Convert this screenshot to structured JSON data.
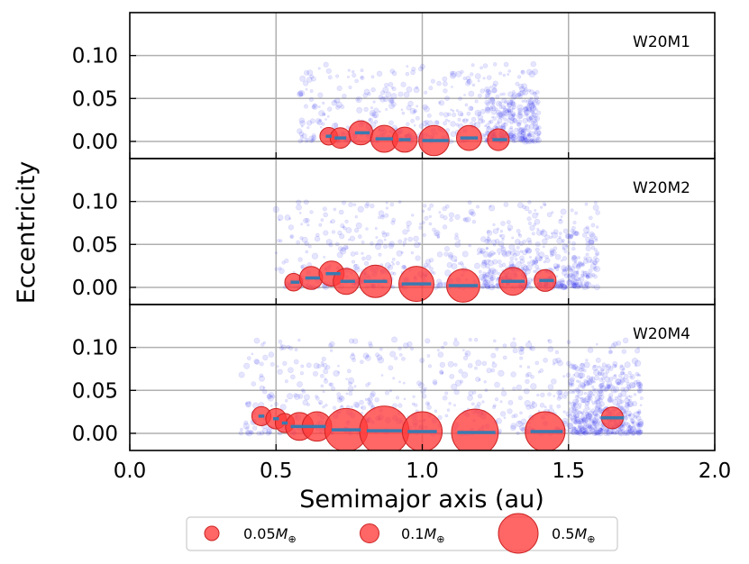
{
  "chart_data": {
    "type": "scatter",
    "xlabel": "Semimajor axis (au)",
    "ylabel": "Eccentricity",
    "xlim": [
      0.0,
      2.0
    ],
    "ylim": [
      -0.02,
      0.15
    ],
    "x_ticks": [
      "0.0",
      "0.5",
      "1.0",
      "1.5",
      "2.0"
    ],
    "y_ticks": [
      "0.00",
      "0.05",
      "0.10"
    ],
    "grid": true,
    "legend_position": "below plot",
    "legend": [
      {
        "label_base": "0.05",
        "mass_value": 0.05
      },
      {
        "label_base": "0.1",
        "mass_value": 0.1
      },
      {
        "label_base": "0.5",
        "mass_value": 0.5
      }
    ],
    "legend_unit_symbol": "M",
    "legend_unit_subscript": "⊕",
    "colors": {
      "planets": "#ff3b3b",
      "planet_edge": "#cc2222",
      "bars": "#3a7ab0",
      "debris": "#3333ee",
      "grid": "#b0b0b0"
    },
    "panels": [
      {
        "name": "W20M1",
        "planets": [
          {
            "a": 0.68,
            "e": 0.006,
            "m": 0.015,
            "lo": 0.67,
            "hi": 0.69
          },
          {
            "a": 0.72,
            "e": 0.004,
            "m": 0.025,
            "lo": 0.7,
            "hi": 0.74
          },
          {
            "a": 0.79,
            "e": 0.01,
            "m": 0.04,
            "lo": 0.77,
            "hi": 0.82
          },
          {
            "a": 0.87,
            "e": 0.003,
            "m": 0.055,
            "lo": 0.84,
            "hi": 0.9
          },
          {
            "a": 0.94,
            "e": 0.002,
            "m": 0.045,
            "lo": 0.92,
            "hi": 0.96
          },
          {
            "a": 1.04,
            "e": 0.001,
            "m": 0.075,
            "lo": 1.0,
            "hi": 1.09
          },
          {
            "a": 1.16,
            "e": 0.004,
            "m": 0.045,
            "lo": 1.13,
            "hi": 1.19
          },
          {
            "a": 1.26,
            "e": 0.002,
            "m": 0.03,
            "lo": 1.24,
            "hi": 1.29
          }
        ],
        "debris_regions": [
          {
            "from": 0.58,
            "to": 1.4,
            "n": 420,
            "emax": 0.09
          },
          {
            "from": 1.22,
            "to": 1.4,
            "n": 220,
            "emax": 0.06
          }
        ]
      },
      {
        "name": "W20M2",
        "planets": [
          {
            "a": 0.56,
            "e": 0.006,
            "m": 0.015,
            "lo": 0.55,
            "hi": 0.58
          },
          {
            "a": 0.62,
            "e": 0.011,
            "m": 0.035,
            "lo": 0.6,
            "hi": 0.65
          },
          {
            "a": 0.69,
            "e": 0.016,
            "m": 0.045,
            "lo": 0.67,
            "hi": 0.72
          },
          {
            "a": 0.74,
            "e": 0.007,
            "m": 0.05,
            "lo": 0.72,
            "hi": 0.77
          },
          {
            "a": 0.84,
            "e": 0.007,
            "m": 0.09,
            "lo": 0.8,
            "hi": 0.88
          },
          {
            "a": 0.98,
            "e": 0.004,
            "m": 0.11,
            "lo": 0.93,
            "hi": 1.03
          },
          {
            "a": 1.14,
            "e": 0.002,
            "m": 0.095,
            "lo": 1.09,
            "hi": 1.19
          },
          {
            "a": 1.31,
            "e": 0.007,
            "m": 0.06,
            "lo": 1.27,
            "hi": 1.35
          },
          {
            "a": 1.42,
            "e": 0.008,
            "m": 0.03,
            "lo": 1.4,
            "hi": 1.45
          }
        ],
        "debris_regions": [
          {
            "from": 0.5,
            "to": 1.6,
            "n": 520,
            "emax": 0.1
          },
          {
            "from": 1.2,
            "to": 1.6,
            "n": 280,
            "emax": 0.07
          }
        ]
      },
      {
        "name": "W20M4",
        "planets": [
          {
            "a": 0.45,
            "e": 0.02,
            "m": 0.02,
            "lo": 0.44,
            "hi": 0.46
          },
          {
            "a": 0.5,
            "e": 0.017,
            "m": 0.025,
            "lo": 0.49,
            "hi": 0.51
          },
          {
            "a": 0.53,
            "e": 0.012,
            "m": 0.02,
            "lo": 0.52,
            "hi": 0.54
          },
          {
            "a": 0.58,
            "e": 0.008,
            "m": 0.06,
            "lo": 0.55,
            "hi": 0.61
          },
          {
            "a": 0.64,
            "e": 0.008,
            "m": 0.07,
            "lo": 0.61,
            "hi": 0.67
          },
          {
            "a": 0.74,
            "e": 0.004,
            "m": 0.18,
            "lo": 0.69,
            "hi": 0.79
          },
          {
            "a": 0.87,
            "e": 0.003,
            "m": 0.25,
            "lo": 0.81,
            "hi": 0.93
          },
          {
            "a": 1.0,
            "e": 0.002,
            "m": 0.15,
            "lo": 0.95,
            "hi": 1.05
          },
          {
            "a": 1.18,
            "e": 0.001,
            "m": 0.22,
            "lo": 1.12,
            "hi": 1.25
          },
          {
            "a": 1.42,
            "e": 0.002,
            "m": 0.15,
            "lo": 1.37,
            "hi": 1.48
          },
          {
            "a": 1.65,
            "e": 0.018,
            "m": 0.03,
            "lo": 1.61,
            "hi": 1.69
          }
        ],
        "debris_regions": [
          {
            "from": 0.38,
            "to": 1.75,
            "n": 600,
            "emax": 0.11
          },
          {
            "from": 1.5,
            "to": 1.75,
            "n": 380,
            "emax": 0.08
          }
        ]
      }
    ]
  }
}
